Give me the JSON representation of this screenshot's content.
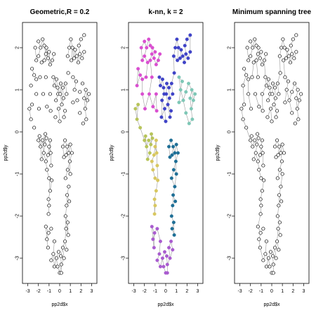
{
  "chart_data": [
    {
      "type": "scatter",
      "title": "Geometric,R = 0.2",
      "xlabel": "pp2d$x",
      "ylabel": "pp2d$y",
      "xlim": [
        -3.5,
        3.5
      ],
      "ylim": [
        -3.6,
        2.6
      ],
      "xticks": [
        -3,
        -2,
        -1,
        0,
        1,
        2,
        3
      ],
      "yticks": [
        -3,
        -2,
        -1,
        0,
        1,
        2
      ],
      "point_style": "open-circle",
      "edges": "geometric",
      "edge_color": "#9a9a9a"
    },
    {
      "type": "scatter",
      "title": "k-nn, k = 2",
      "xlabel": "pp2d$x",
      "ylabel": "pp2d$y",
      "xlim": [
        -3.5,
        3.5
      ],
      "ylim": [
        -3.6,
        2.6
      ],
      "xticks": [
        -3,
        -2,
        -1,
        0,
        1,
        2,
        3
      ],
      "yticks": [
        -3,
        -2,
        -1,
        0,
        1,
        2
      ],
      "point_style": "filled-colored",
      "edges": "knn",
      "edge_color": "#9a9a9a"
    },
    {
      "type": "scatter",
      "title": "Minimum spanning tree",
      "xlabel": "pp2d$x",
      "ylabel": "pp2d$y",
      "xlim": [
        -3.5,
        3.5
      ],
      "ylim": [
        -3.6,
        2.6
      ],
      "xticks": [
        -3,
        -2,
        -1,
        0,
        1,
        2,
        3
      ],
      "yticks": [
        -3,
        -2,
        -1,
        0,
        1,
        2
      ],
      "point_style": "open-circle",
      "edges": "mst",
      "edge_color": "#9a9a9a"
    }
  ],
  "shared_points": [
    [
      -2.3,
      2.0
    ],
    [
      -2.0,
      2.15
    ],
    [
      -1.8,
      2.0
    ],
    [
      -1.6,
      2.2
    ],
    [
      -1.45,
      2.05
    ],
    [
      -1.3,
      1.85
    ],
    [
      -1.1,
      1.75
    ],
    [
      -1.25,
      2.0
    ],
    [
      -1.0,
      1.9
    ],
    [
      -0.7,
      1.7
    ],
    [
      -0.55,
      1.85
    ],
    [
      -0.9,
      1.6
    ],
    [
      -2.0,
      1.8
    ],
    [
      -2.2,
      1.7
    ],
    [
      -1.7,
      1.65
    ],
    [
      -1.45,
      1.7
    ],
    [
      0.9,
      2.0
    ],
    [
      1.05,
      2.2
    ],
    [
      1.2,
      2.0
    ],
    [
      1.45,
      1.95
    ],
    [
      1.35,
      1.75
    ],
    [
      1.6,
      1.8
    ],
    [
      1.8,
      2.05
    ],
    [
      1.75,
      1.65
    ],
    [
      2.1,
      1.75
    ],
    [
      2.0,
      2.2
    ],
    [
      2.3,
      2.3
    ],
    [
      2.3,
      1.9
    ],
    [
      1.9,
      1.85
    ],
    [
      1.1,
      1.7
    ],
    [
      0.75,
      1.8
    ],
    [
      -2.6,
      1.5
    ],
    [
      -2.4,
      1.35
    ],
    [
      -2.2,
      1.25
    ],
    [
      -2.7,
      1.1
    ],
    [
      -1.85,
      1.3
    ],
    [
      -1.3,
      1.3
    ],
    [
      -0.6,
      1.3
    ],
    [
      -0.3,
      1.25
    ],
    [
      -0.2,
      1.05
    ],
    [
      -0.5,
      1.1
    ],
    [
      -0.15,
      0.9
    ],
    [
      0.1,
      1.15
    ],
    [
      0.05,
      0.9
    ],
    [
      0.3,
      1.05
    ],
    [
      0.55,
      1.15
    ],
    [
      0.35,
      0.8
    ],
    [
      -0.35,
      0.75
    ],
    [
      0.2,
      0.65
    ],
    [
      -0.1,
      0.55
    ],
    [
      0.5,
      0.5
    ],
    [
      0.65,
      0.9
    ],
    [
      0.8,
      1.4
    ],
    [
      1.25,
      1.3
    ],
    [
      1.55,
      1.2
    ],
    [
      1.4,
      1.0
    ],
    [
      1.25,
      0.7
    ],
    [
      1.65,
      0.75
    ],
    [
      1.9,
      0.95
    ],
    [
      2.15,
      1.15
    ],
    [
      2.45,
      1.0
    ],
    [
      2.3,
      0.8
    ],
    [
      2.6,
      0.75
    ],
    [
      2.75,
      0.9
    ],
    [
      2.4,
      0.55
    ],
    [
      2.5,
      0.3
    ],
    [
      2.2,
      0.2
    ],
    [
      1.9,
      0.45
    ],
    [
      -2.2,
      0.9
    ],
    [
      -2.85,
      0.55
    ],
    [
      -2.7,
      0.3
    ],
    [
      -2.4,
      0.1
    ],
    [
      -2.6,
      0.65
    ],
    [
      -1.95,
      0.55
    ],
    [
      -1.55,
      0.9
    ],
    [
      -1.2,
      0.6
    ],
    [
      -0.9,
      0.9
    ],
    [
      -0.85,
      0.5
    ],
    [
      0.0,
      0.25
    ],
    [
      -0.4,
      0.35
    ],
    [
      0.4,
      0.35
    ],
    [
      -1.9,
      -0.1
    ],
    [
      -1.6,
      -0.2
    ],
    [
      -1.8,
      -0.35
    ],
    [
      -1.4,
      -0.3
    ],
    [
      -1.25,
      -0.15
    ],
    [
      -1.5,
      -0.5
    ],
    [
      -1.7,
      -0.65
    ],
    [
      -1.3,
      -0.7
    ],
    [
      -1.1,
      -0.55
    ],
    [
      -1.0,
      -0.35
    ],
    [
      -0.85,
      -0.5
    ],
    [
      -1.2,
      -0.9
    ],
    [
      -1.0,
      -1.1
    ],
    [
      -0.8,
      -0.8
    ],
    [
      -0.9,
      -1.4
    ],
    [
      -1.05,
      -1.6
    ],
    [
      -0.75,
      -1.15
    ],
    [
      -2.0,
      -0.2
    ],
    [
      -1.35,
      -0.05
    ],
    [
      -0.9,
      -0.2
    ],
    [
      0.3,
      -0.35
    ],
    [
      0.5,
      -0.2
    ],
    [
      0.7,
      -0.35
    ],
    [
      0.6,
      -0.55
    ],
    [
      0.85,
      -0.5
    ],
    [
      1.0,
      -0.3
    ],
    [
      0.95,
      -0.7
    ],
    [
      0.75,
      -0.9
    ],
    [
      1.0,
      -1.0
    ],
    [
      0.55,
      -1.1
    ],
    [
      0.85,
      -1.3
    ],
    [
      0.7,
      -1.5
    ],
    [
      0.65,
      -1.75
    ],
    [
      0.9,
      -1.65
    ],
    [
      0.55,
      -2.0
    ],
    [
      0.75,
      -2.15
    ],
    [
      0.6,
      -2.3
    ],
    [
      0.8,
      -2.45
    ],
    [
      0.4,
      -0.6
    ],
    [
      1.15,
      -0.5
    ],
    [
      -1.0,
      -1.75
    ],
    [
      -1.05,
      -1.95
    ],
    [
      -1.3,
      -2.25
    ],
    [
      -1.05,
      -2.4
    ],
    [
      -0.8,
      -2.3
    ],
    [
      -1.2,
      -2.55
    ],
    [
      -0.5,
      -2.6
    ],
    [
      -1.1,
      -2.75
    ],
    [
      -0.6,
      -2.9
    ],
    [
      -0.3,
      -3.0
    ],
    [
      -0.8,
      -3.05
    ],
    [
      -0.1,
      -2.85
    ],
    [
      0.1,
      -2.95
    ],
    [
      0.3,
      -2.75
    ],
    [
      0.5,
      -2.6
    ],
    [
      0.65,
      -2.8
    ],
    [
      0.4,
      -3.0
    ],
    [
      0.15,
      -3.15
    ],
    [
      -0.2,
      -3.2
    ],
    [
      -0.5,
      -3.2
    ],
    [
      0.0,
      -3.35
    ],
    [
      0.15,
      -3.35
    ]
  ],
  "knn_palette": [
    "#d94fd0",
    "#3f43c7",
    "#7ec7b6",
    "#b7c45a",
    "#d8c760",
    "#1f6f96",
    "#a95ccf",
    "#7b2d8a",
    "#5ccdc2",
    "#98d48c",
    "#2a35c9",
    "#c98a45",
    "#4a86a8"
  ]
}
